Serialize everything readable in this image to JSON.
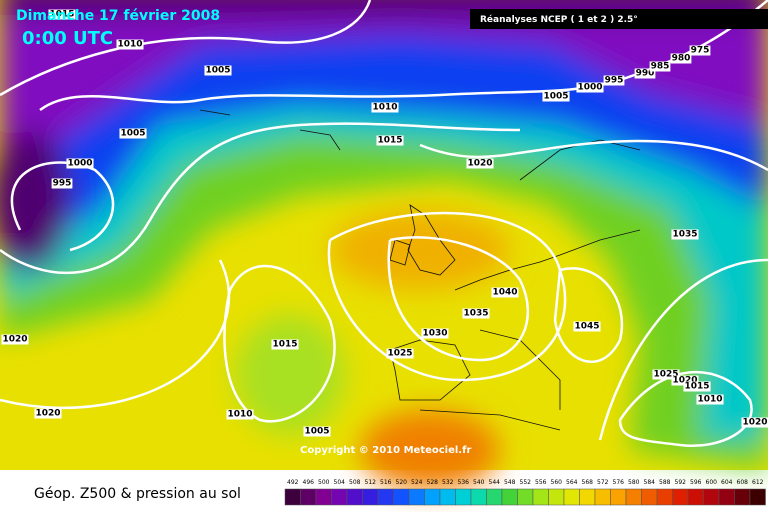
{
  "header": {
    "title": "Dimanche 17 février 2008",
    "time": "0:00 UTC",
    "source": "Réanalyses NCEP ( 1 et 2 ) 2.5°",
    "copyright": "Copyright © 2010 Meteociel.fr"
  },
  "isobar_labels": [
    "1015",
    "1010",
    "1005",
    "1010",
    "1015",
    "1005",
    "1000",
    "995",
    "1020",
    "1005",
    "1000",
    "995",
    "990",
    "985",
    "980",
    "975",
    "1035",
    "1040",
    "1035",
    "1030",
    "1025",
    "1045",
    "1015",
    "1020",
    "1020",
    "1010",
    "1005",
    "1025",
    "1020",
    "1015",
    "1010",
    "1020"
  ],
  "legend": {
    "title": "Géop. Z500 & pression au sol",
    "labels": [
      492,
      496,
      500,
      504,
      508,
      512,
      516,
      520,
      524,
      528,
      532,
      536,
      540,
      544,
      548,
      552,
      556,
      560,
      564,
      568,
      572,
      576,
      580,
      584,
      588,
      592,
      596,
      600,
      604,
      608,
      612
    ]
  }
}
